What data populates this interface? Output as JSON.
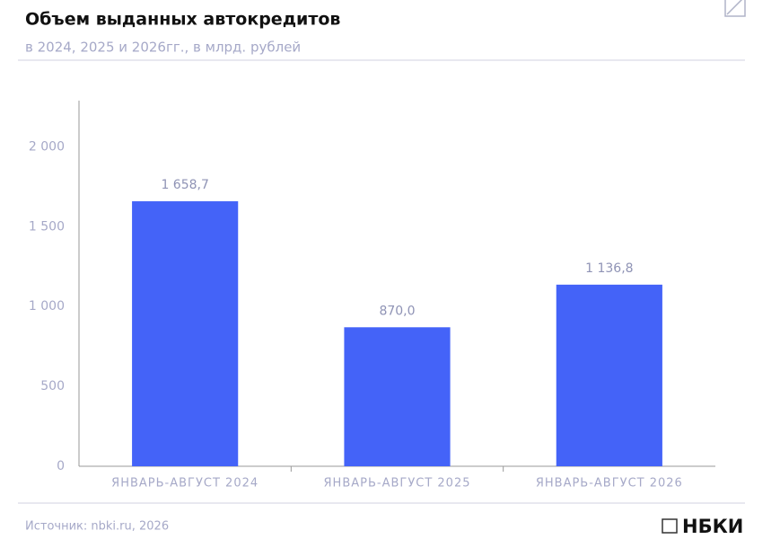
{
  "chart_data": {
    "type": "bar",
    "title": "Объем выданных автокредитов",
    "subtitle": "в 2024, 2025 и 2026гг., в млрд. рублей",
    "categories": [
      "ЯНВАРЬ-АВГУСТ 2024",
      "ЯНВАРЬ-АВГУСТ 2025",
      "ЯНВАРЬ-АВГУСТ 2026"
    ],
    "values": [
      1658.7,
      870.0,
      1136.8
    ],
    "value_labels": [
      "1 658,7",
      "870,0",
      "1 136,8"
    ],
    "color": "#4463f8",
    "ylim": [
      0,
      2300
    ],
    "yticks": [
      0,
      500,
      {
        "value": 1000,
        "label": "1 000"
      },
      {
        "value": 1500,
        "label": "1 500"
      },
      {
        "value": 2000,
        "label": "2 000"
      }
    ],
    "grid": false,
    "source": "Источник: nbki.ru, 2026",
    "logo": "НБКИ"
  }
}
